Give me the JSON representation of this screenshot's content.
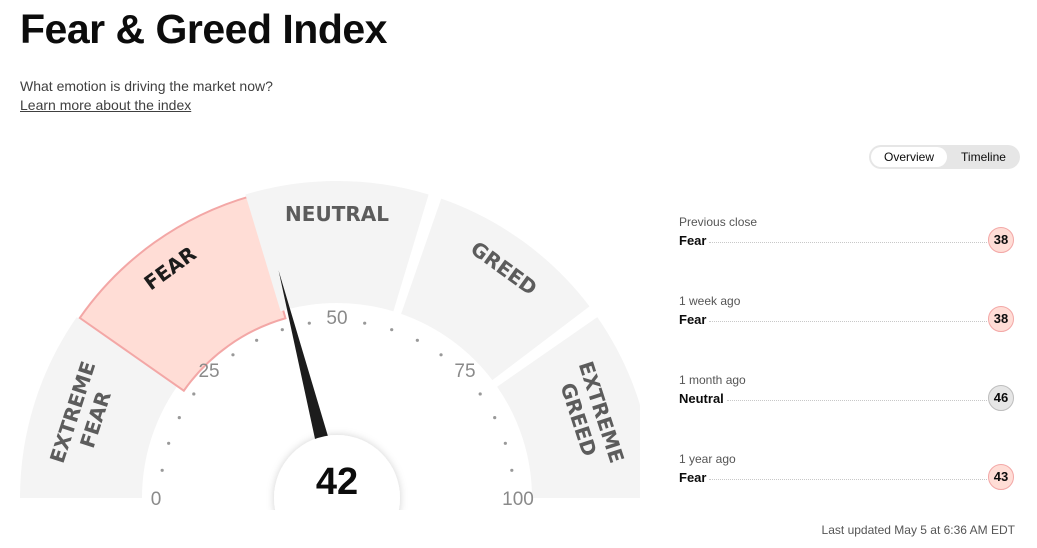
{
  "header": {
    "title": "Fear & Greed Index",
    "subtitle": "What emotion is driving the market now?",
    "learn_more": "Learn more about the index"
  },
  "view_toggle": {
    "overview": "Overview",
    "timeline": "Timeline",
    "selected": "Overview"
  },
  "gauge": {
    "score": 42,
    "score_label": "42",
    "segments": [
      {
        "lines": [
          "EXTREME",
          "FEAR"
        ]
      },
      {
        "lines": [
          "FEAR"
        ]
      },
      {
        "lines": [
          "NEUTRAL"
        ]
      },
      {
        "lines": [
          "GREED"
        ]
      },
      {
        "lines": [
          "EXTREME",
          "GREED"
        ]
      }
    ],
    "active_segment": "FEAR",
    "tick_labels": [
      {
        "value": 0,
        "text": "0"
      },
      {
        "value": 25,
        "text": "25"
      },
      {
        "value": 50,
        "text": "50"
      },
      {
        "value": 75,
        "text": "75"
      },
      {
        "value": 100,
        "text": "100"
      }
    ],
    "colors": {
      "segment": "#f4f4f4",
      "active_fill": "#ffddd6",
      "active_stroke": "#f3a7a6",
      "needle": "#1c1c1c",
      "dots": "#999999"
    }
  },
  "history": [
    {
      "period": "Previous close",
      "rating": "Fear",
      "value": "38",
      "class": "fear"
    },
    {
      "period": "1 week ago",
      "rating": "Fear",
      "value": "38",
      "class": "fear"
    },
    {
      "period": "1 month ago",
      "rating": "Neutral",
      "value": "46",
      "class": "neutral"
    },
    {
      "period": "1 year ago",
      "rating": "Fear",
      "value": "43",
      "class": "fear"
    }
  ],
  "last_updated": "Last updated May 5 at 6:36 AM EDT"
}
